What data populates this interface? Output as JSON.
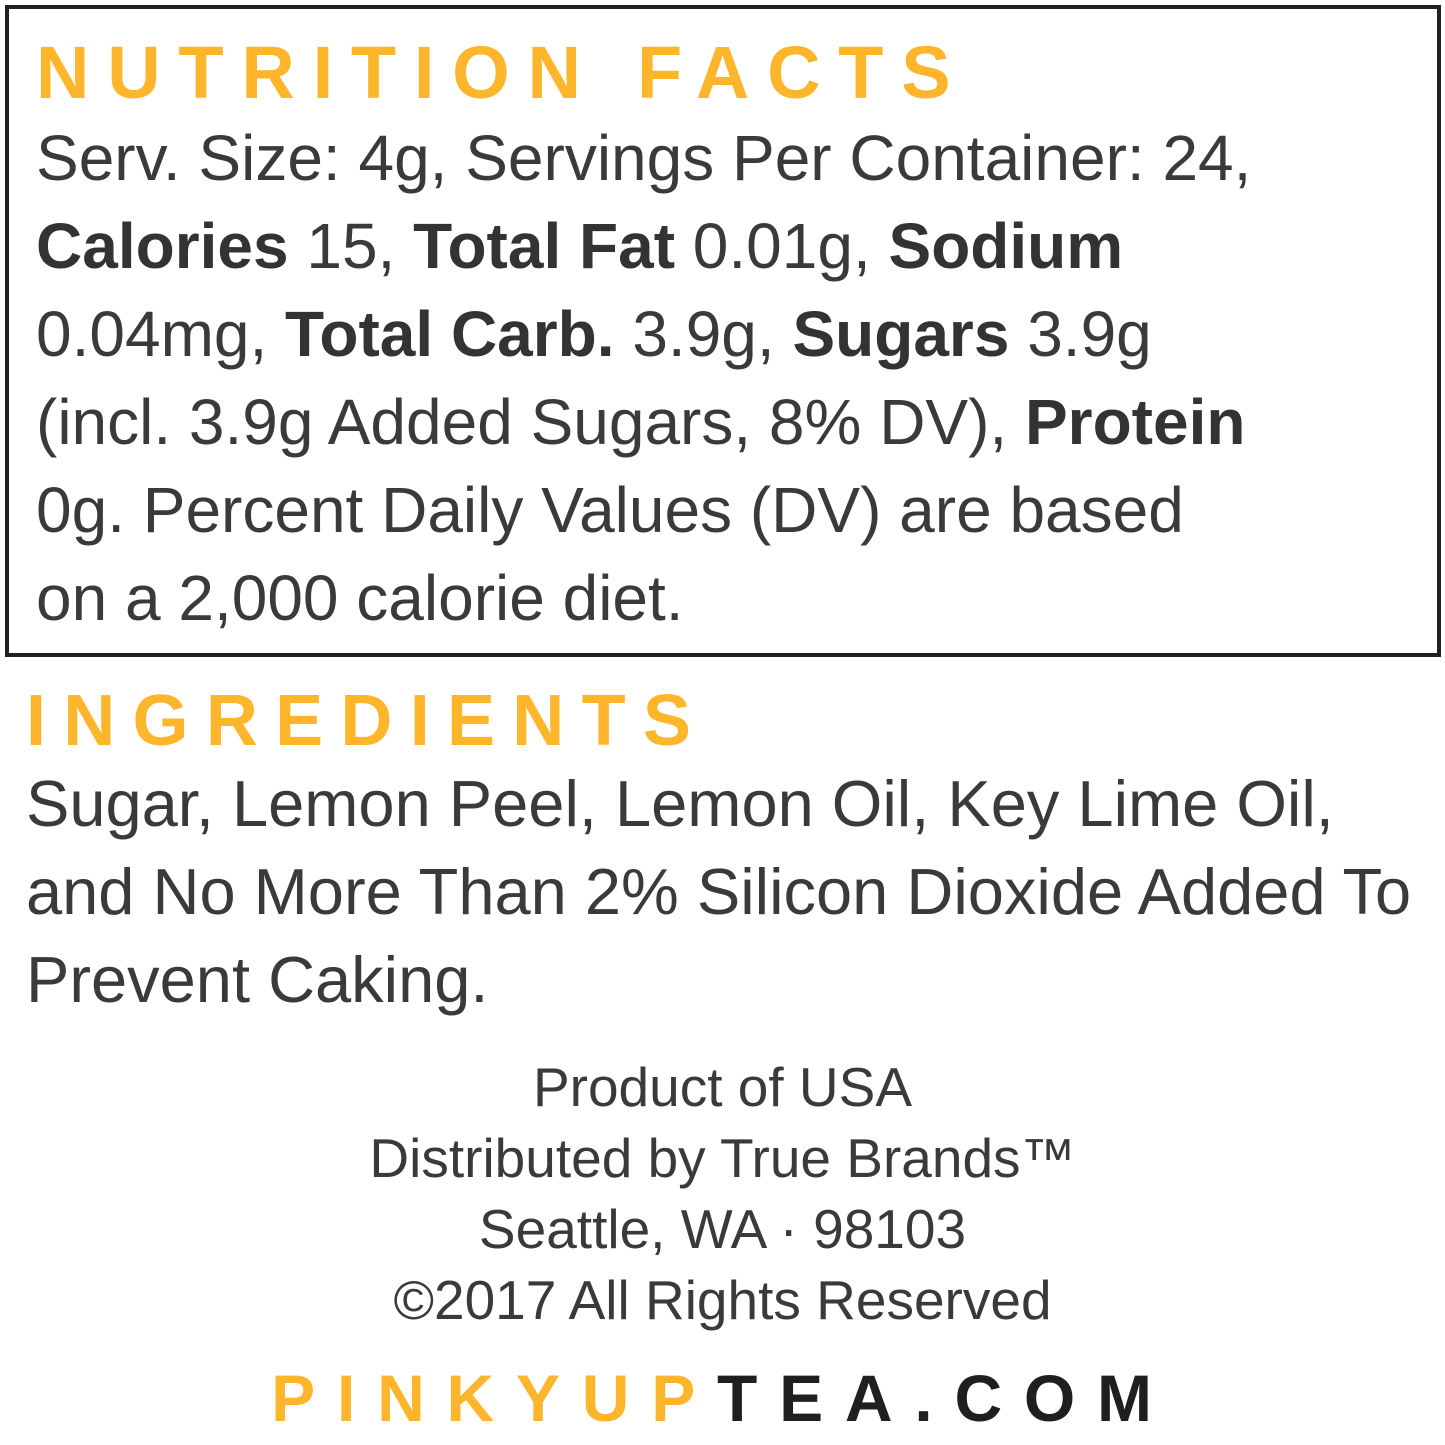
{
  "colors": {
    "accent": "#fdb52b",
    "text": "#3a3a3c",
    "border": "#231f20"
  },
  "nutrition": {
    "title": "NUTRITION FACTS",
    "lines": [
      [
        {
          "t": "Serv. Size: 4g, Servings Per Container: 24,",
          "b": false
        }
      ],
      [
        {
          "t": "Calories",
          "b": true
        },
        {
          "t": " 15, ",
          "b": false
        },
        {
          "t": "Total Fat",
          "b": true
        },
        {
          "t": " 0.01g, ",
          "b": false
        },
        {
          "t": "Sodium",
          "b": true
        }
      ],
      [
        {
          "t": "0.04mg, ",
          "b": false
        },
        {
          "t": "Total Carb.",
          "b": true
        },
        {
          "t": " 3.9g, ",
          "b": false
        },
        {
          "t": "Sugars",
          "b": true
        },
        {
          "t": " 3.9g",
          "b": false
        }
      ],
      [
        {
          "t": "(incl. 3.9g Added Sugars, 8% DV), ",
          "b": false
        },
        {
          "t": "Protein",
          "b": true
        }
      ],
      [
        {
          "t": "0g. Percent Daily Values (DV) are based",
          "b": false
        }
      ],
      [
        {
          "t": "on a 2,000 calorie diet.",
          "b": false
        }
      ]
    ]
  },
  "ingredients": {
    "title": "INGREDIENTS",
    "text": "Sugar, Lemon Peel, Lemon Oil, Key Lime Oil, and No More Than 2% Silicon Dioxide Added To Prevent Caking."
  },
  "footer": {
    "lines": [
      "Product of USA",
      "Distributed by True Brands™",
      "Seattle, WA · 98103",
      "©2017 All Rights Reserved"
    ]
  },
  "website": {
    "part1": "PINKYUP",
    "part2": "TEA.COM"
  }
}
